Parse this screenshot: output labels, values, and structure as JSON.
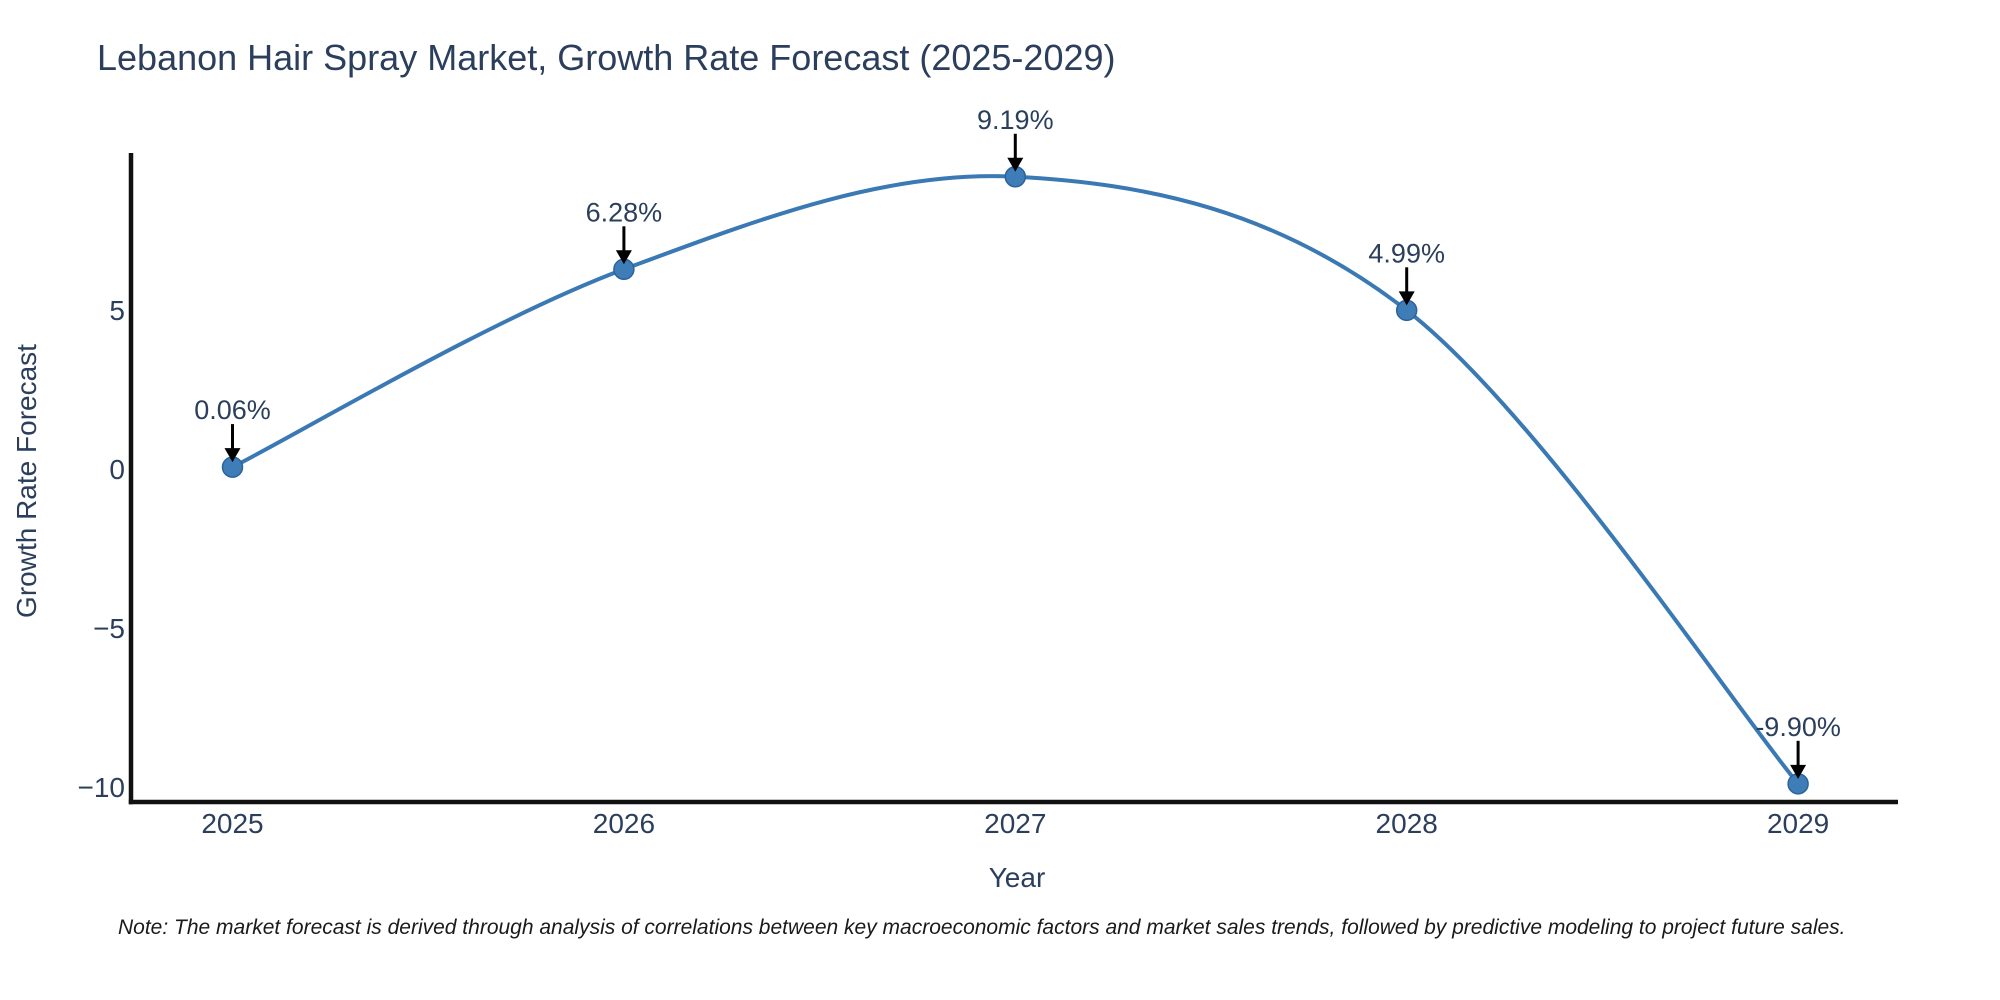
{
  "page": {
    "background": "#ffffff"
  },
  "note": {
    "text": "Note: The market forecast is derived through analysis of correlations between key macroeconomic factors and market sales trends, followed by predictive modeling to project future sales."
  },
  "chart_data": {
    "type": "line",
    "line_shape": "spline",
    "title": "Lebanon Hair Spray Market, Growth Rate Forecast (2025-2029)",
    "xlabel": "Year",
    "ylabel": "Growth Rate Forecast",
    "x": [
      2025,
      2026,
      2027,
      2028,
      2029
    ],
    "x_tick_labels": [
      "2025",
      "2026",
      "2027",
      "2028",
      "2029"
    ],
    "values": [
      0.06,
      6.28,
      9.19,
      4.99,
      -9.9
    ],
    "point_labels": [
      "0.06%",
      "6.28%",
      "9.19%",
      "4.99%",
      "-9.90%"
    ],
    "y_ticks": [
      5,
      0,
      -5,
      -10
    ],
    "y_tick_labels": [
      "5",
      "0",
      "−5",
      "−10"
    ],
    "ylim": [
      -10.4,
      10.0
    ],
    "grid": false,
    "legend": "none",
    "colors": {
      "line": "#3a79b4",
      "marker": "#3e7db8",
      "marker_edge": "#2d6399",
      "axis": "#111111",
      "text": "#2b3f5c",
      "arrow": "#000000"
    }
  }
}
